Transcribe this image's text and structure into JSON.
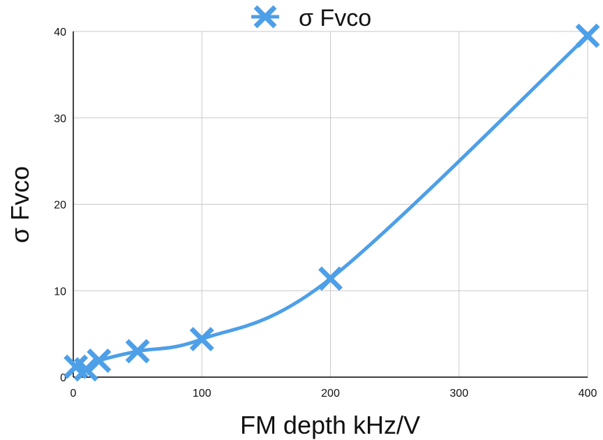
{
  "chart_data": {
    "type": "line",
    "title": "",
    "xlabel": "FM depth kHz/V",
    "ylabel": "σ Fvco",
    "xlim": [
      0,
      400
    ],
    "ylim": [
      0,
      40
    ],
    "xticks": [
      0,
      100,
      200,
      300,
      400
    ],
    "yticks": [
      0,
      10,
      20,
      30,
      40
    ],
    "grid": true,
    "legend": "top-center",
    "series": [
      {
        "name": "σ Fvco",
        "color": "#4d9fe8",
        "marker": "x-icon",
        "smooth": true,
        "x": [
          2,
          10,
          20,
          50,
          100,
          200,
          400
        ],
        "y": [
          1.2,
          0.9,
          1.9,
          3.0,
          4.4,
          11.4,
          39.5
        ]
      }
    ]
  }
}
